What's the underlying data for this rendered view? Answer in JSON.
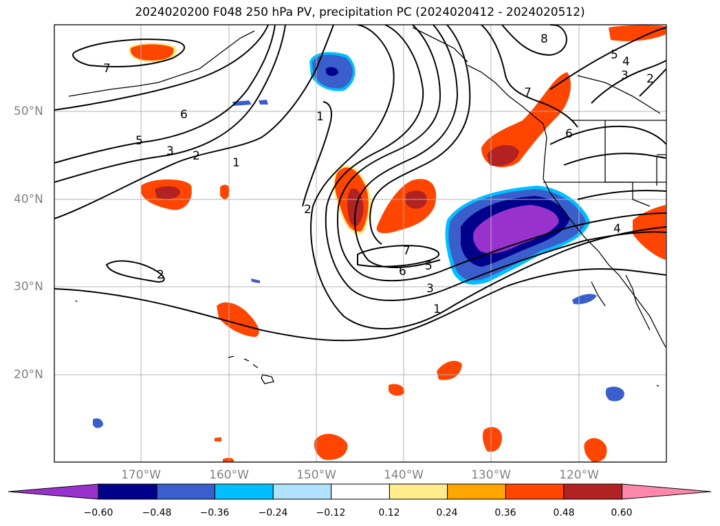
{
  "title": "2024020200 F048 250 hPa PV, precipitation PC (2024020412 - 2024020512)",
  "lat_labels": [
    "50°N",
    "40°N",
    "30°N",
    "20°N"
  ],
  "lon_labels": [
    "170°W",
    "160°W",
    "150°W",
    "140°W",
    "130°W",
    "120°W"
  ],
  "contour_labels": [
    "7",
    "6",
    "5",
    "3",
    "2",
    "1",
    "1",
    "2",
    "2",
    "7",
    "6",
    "5",
    "3",
    "1",
    "8",
    "5",
    "4",
    "3",
    "2",
    "7",
    "6",
    "4"
  ],
  "colorbar": {
    "ticks": [
      "−0.60",
      "−0.48",
      "−0.36",
      "−0.24",
      "−0.12",
      "0.12",
      "0.24",
      "0.36",
      "0.48",
      "0.60"
    ],
    "colors": [
      "#9932cc",
      "#00008b",
      "#3a5fcd",
      "#00bfff",
      "#b0e2ff",
      "#ffffff",
      "#ffec8b",
      "#ffa500",
      "#ff4500",
      "#b22222",
      "#ff88aa"
    ]
  },
  "colors": {
    "positive": "#ff4500",
    "positive_strong": "#b22222",
    "negative": "#3a5fcd",
    "negative_strong": "#00008b",
    "negative_max": "#9932cc",
    "gridline": "#b0b0b0"
  }
}
